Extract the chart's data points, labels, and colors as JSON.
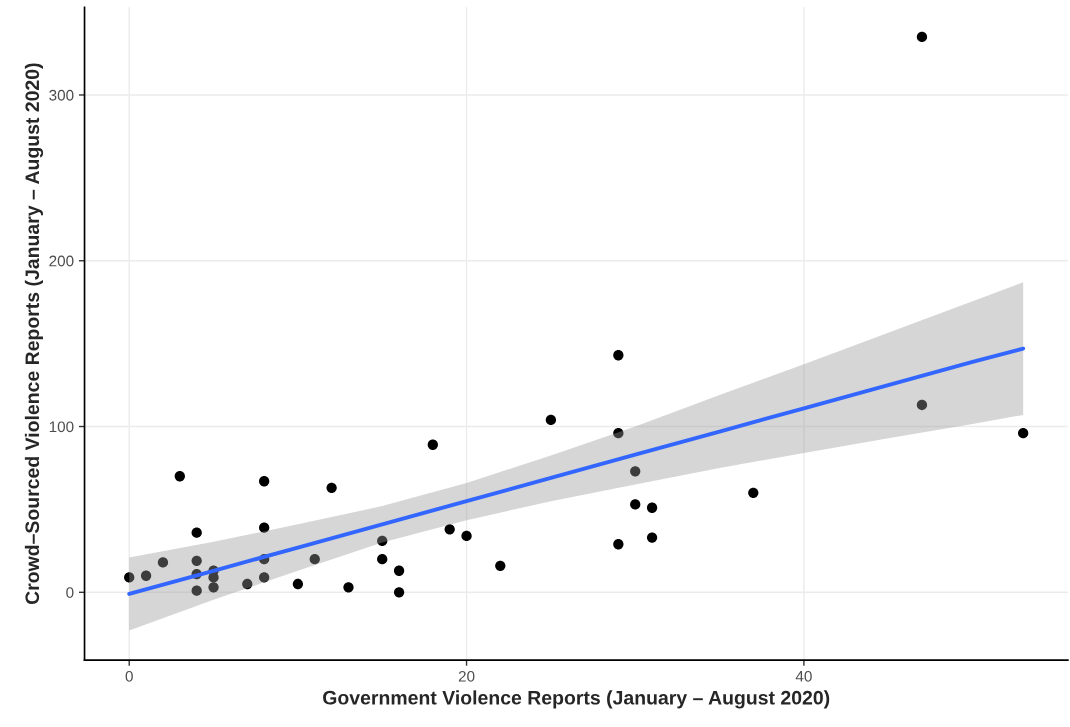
{
  "chart_data": {
    "type": "scatter",
    "xlabel": "Government Violence Reports (January – August 2020)",
    "ylabel": "Crowd–Sourced Violence Reports (January – August 2020)",
    "xlim": [
      -2.65,
      55.65
    ],
    "ylim": [
      -40.9,
      352.9
    ],
    "xticks": [
      0,
      20,
      40
    ],
    "yticks": [
      0,
      100,
      200,
      300
    ],
    "grid": true,
    "series": [
      {
        "marker": "circle",
        "color": "#000000",
        "x": [
          0,
          1,
          2,
          3,
          4,
          4,
          4,
          4,
          5,
          5,
          5,
          7,
          8,
          8,
          8,
          8,
          10,
          11,
          12,
          13,
          15,
          15,
          16,
          16,
          18,
          19,
          20,
          22,
          25,
          29,
          29,
          29,
          30,
          30,
          31,
          31,
          37,
          47,
          47,
          53
        ],
        "values": [
          9,
          10,
          18,
          70,
          36,
          19,
          11,
          1,
          13,
          9,
          3,
          5,
          67,
          39,
          20,
          9,
          5,
          20,
          63,
          3,
          31,
          20,
          13,
          0,
          89,
          38,
          34,
          16,
          104,
          143,
          96,
          29,
          73,
          53,
          51,
          33,
          60,
          335,
          113,
          96
        ]
      },
      {
        "type": "line",
        "color": "#3366ff",
        "x": [
          0,
          5,
          10,
          15,
          20,
          25,
          30,
          35,
          40,
          45,
          50,
          53
        ],
        "values": [
          -1,
          13,
          27,
          41,
          55,
          69,
          83,
          97,
          111,
          125,
          139,
          147
        ],
        "lower": [
          -23,
          -4.5,
          13,
          30,
          43.5,
          55,
          65,
          75,
          84,
          93,
          101.5,
          107
        ],
        "upper": [
          21,
          30.5,
          41,
          52,
          66,
          82.5,
          100,
          119,
          137.5,
          156.5,
          175.5,
          187
        ]
      }
    ]
  }
}
